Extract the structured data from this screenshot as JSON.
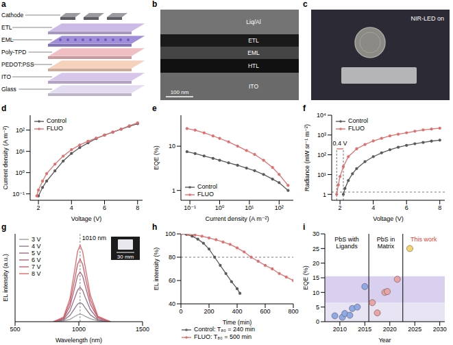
{
  "diagrams": {
    "a": {
      "panel": "a",
      "layers": [
        "Cathode",
        "ETL",
        "EML",
        "Poly-TPD",
        "PEDOT:PSS",
        "ITO",
        "Glass"
      ]
    },
    "b": {
      "panel": "b",
      "layers": [
        "Liq/Al",
        "ETL",
        "EML",
        "HTL",
        "ITO"
      ],
      "scale_bar": "100 nm"
    },
    "c": {
      "panel": "c",
      "caption": "NIR-LED on"
    }
  },
  "chart_data": [
    {
      "panel": "d",
      "type": "line",
      "log": "y",
      "x_label": "Voltage (V)",
      "y_label": "Current density (A m⁻²)",
      "xlim": [
        1.5,
        8.3
      ],
      "xticks": [
        2,
        4,
        6,
        8
      ],
      "ylim": [
        0.05,
        500
      ],
      "yticks": [
        {
          "value": 0.1,
          "label": "10⁻¹"
        },
        {
          "value": 1,
          "label": "10⁰"
        },
        {
          "value": 10,
          "label": "10¹"
        },
        {
          "value": 100,
          "label": "10²"
        }
      ],
      "legend": "upper left",
      "series": [
        {
          "name": "Control",
          "color": "#5a5a5a",
          "marker": "circle",
          "x": [
            2.0,
            2.25,
            2.5,
            3,
            3.5,
            4,
            4.5,
            5,
            5.5,
            6,
            6.5,
            7,
            7.5,
            8
          ],
          "values": [
            0.08,
            0.2,
            0.4,
            1.2,
            3.5,
            8,
            15,
            25,
            40,
            58,
            80,
            110,
            150,
            200
          ]
        },
        {
          "name": "FLUO",
          "color": "#e07070",
          "marker": "circle",
          "x": [
            1.9,
            2.0,
            2.25,
            2.5,
            3,
            3.5,
            4,
            4.5,
            5,
            5.5,
            6,
            6.5,
            7,
            7.5,
            8
          ],
          "values": [
            0.08,
            0.15,
            0.4,
            0.9,
            2.5,
            6,
            12,
            20,
            30,
            42,
            58,
            80,
            110,
            160,
            220
          ]
        }
      ]
    },
    {
      "panel": "e",
      "type": "line",
      "log": true,
      "x_label": "Current density (A m⁻²)",
      "y_label": "EQE (%)",
      "xlim": [
        0.05,
        300
      ],
      "xticks": [
        {
          "value": 0.1,
          "label": "10⁻¹"
        },
        {
          "value": 1,
          "label": "10⁰"
        },
        {
          "value": 10,
          "label": "10¹"
        },
        {
          "value": 100,
          "label": "10²"
        }
      ],
      "ylim": [
        0.6,
        50
      ],
      "yticks": [
        1,
        10
      ],
      "legend": "lower left",
      "series": [
        {
          "name": "Control",
          "color": "#5a5a5a",
          "marker": "circle",
          "x": [
            0.08,
            0.15,
            0.3,
            0.6,
            1,
            2,
            4,
            8,
            15,
            30,
            60,
            100,
            200
          ],
          "values": [
            7.5,
            6.8,
            6,
            5.3,
            4.8,
            4.2,
            3.7,
            3.2,
            2.8,
            2.3,
            1.8,
            1.5,
            1.0
          ]
        },
        {
          "name": "FLUO",
          "color": "#e07070",
          "marker": "circle",
          "x": [
            0.08,
            0.15,
            0.3,
            0.6,
            1,
            2,
            4,
            8,
            15,
            30,
            60,
            100,
            200
          ],
          "values": [
            25,
            23,
            20,
            17,
            15,
            12.5,
            10,
            8,
            6.5,
            4.8,
            3.3,
            2.3,
            1.3
          ]
        }
      ]
    },
    {
      "panel": "f",
      "type": "line",
      "log": "y",
      "x_label": "Voltage (V)",
      "y_label": "Radiance (mW sr⁻¹ m⁻²)",
      "xlim": [
        1.5,
        8.3
      ],
      "xticks": [
        2,
        4,
        6,
        8
      ],
      "ylim": [
        0.5,
        10000
      ],
      "yticks": [
        1,
        {
          "value": 10,
          "label": "10¹"
        },
        {
          "value": 100,
          "label": "10²"
        },
        {
          "value": 1000,
          "label": "10³"
        },
        {
          "value": 10000,
          "label": "10⁴"
        }
      ],
      "legend": "upper left",
      "reference_x": [
        1.8,
        2.2
      ],
      "reference_y": 1.3,
      "annotations": [
        {
          "text": "0.4 V",
          "y": 200
        }
      ],
      "series": [
        {
          "name": "Control",
          "color": "#5a5a5a",
          "marker": "circle",
          "x": [
            2.2,
            2.3,
            2.5,
            2.75,
            3,
            3.5,
            4,
            4.5,
            5,
            5.5,
            6,
            6.5,
            7,
            7.5,
            8
          ],
          "values": [
            1,
            2,
            5,
            11,
            20,
            45,
            80,
            125,
            180,
            240,
            300,
            360,
            420,
            490,
            550
          ]
        },
        {
          "name": "FLUO",
          "color": "#e07070",
          "marker": "circle",
          "x": [
            1.8,
            1.9,
            2.0,
            2.2,
            2.5,
            3,
            3.5,
            4,
            4.5,
            5,
            5.5,
            6,
            6.5,
            7,
            7.5,
            8
          ],
          "values": [
            1,
            3,
            8,
            25,
            80,
            200,
            330,
            500,
            680,
            900,
            1100,
            1300,
            1550,
            1800,
            2000,
            2200
          ]
        }
      ]
    },
    {
      "panel": "g",
      "type": "line",
      "x_label": "Wavelength (nm)",
      "y_label": "EL intensity (a.u.)",
      "tick_labels": "x",
      "xlim": [
        500,
        1500
      ],
      "xticks": [
        500,
        1000,
        1500
      ],
      "ylim": [
        0,
        1.15
      ],
      "legend": "upper left",
      "peak": {
        "x": 1010,
        "label": "1010 nm"
      },
      "inset": {
        "scale_bar": "30 mm"
      },
      "x": [
        800,
        880,
        930,
        970,
        990,
        1010,
        1030,
        1050,
        1090,
        1150,
        1250
      ],
      "series": [
        {
          "name": "3 V",
          "color": "#a0a0a0",
          "values": [
            0,
            0.01,
            0.03,
            0.07,
            0.09,
            0.1,
            0.09,
            0.07,
            0.04,
            0.01,
            0
          ]
        },
        {
          "name": "4 V",
          "color": "#8c7a8a",
          "values": [
            0,
            0.02,
            0.08,
            0.18,
            0.23,
            0.25,
            0.23,
            0.18,
            0.09,
            0.02,
            0
          ]
        },
        {
          "name": "5 V",
          "color": "#9a6a80",
          "values": [
            0,
            0.03,
            0.14,
            0.32,
            0.41,
            0.45,
            0.41,
            0.32,
            0.16,
            0.03,
            0
          ]
        },
        {
          "name": "6 V",
          "color": "#b06078",
          "values": [
            0,
            0.04,
            0.2,
            0.46,
            0.6,
            0.65,
            0.6,
            0.47,
            0.23,
            0.05,
            0
          ]
        },
        {
          "name": "7 V",
          "color": "#c86070",
          "values": [
            0,
            0.05,
            0.25,
            0.57,
            0.75,
            0.82,
            0.75,
            0.59,
            0.29,
            0.06,
            0
          ]
        },
        {
          "name": "8 V",
          "color": "#e06868",
          "values": [
            0,
            0.06,
            0.3,
            0.7,
            0.92,
            1,
            0.92,
            0.72,
            0.35,
            0.07,
            0
          ]
        }
      ]
    },
    {
      "panel": "h",
      "type": "line",
      "x_label": "Time (min)",
      "y_label": "EL intensity (%)",
      "xlim": [
        0,
        800
      ],
      "xticks": [
        0,
        200,
        400,
        600,
        800
      ],
      "ylim": [
        40,
        100
      ],
      "yticks": [
        40,
        60,
        80,
        100
      ],
      "reference_y": 80,
      "legend": "bottom",
      "series": [
        {
          "name": "Control: T₈₀ = 240 min",
          "color": "#5a5a5a",
          "marker": "circle",
          "x": [
            0,
            40,
            80,
            120,
            160,
            200,
            240,
            280,
            320,
            360,
            400,
            420
          ],
          "values": [
            100,
            99.5,
            98,
            95.5,
            92,
            87,
            80,
            73,
            66,
            59,
            53,
            49
          ]
        },
        {
          "name": "FLUO: T₈₀ = 500 min",
          "color": "#e07070",
          "marker": "circle",
          "x": [
            0,
            50,
            100,
            150,
            200,
            250,
            300,
            350,
            400,
            450,
            500,
            550,
            600,
            650,
            700,
            750,
            800
          ],
          "values": [
            100,
            99.6,
            99,
            98,
            96.5,
            95,
            93,
            91,
            88,
            84.5,
            80,
            76.5,
            73,
            70,
            66,
            63,
            60
          ]
        }
      ]
    },
    {
      "panel": "i",
      "type": "scatter",
      "x_label": "Year",
      "y_label": "EQE (%)",
      "xlim": [
        2007,
        2031
      ],
      "xticks": [
        2010,
        2015,
        2020,
        2025,
        2030
      ],
      "ylim": [
        0,
        30
      ],
      "yticks": [
        0,
        5,
        10,
        15,
        20,
        25,
        30
      ],
      "bands": [
        {
          "from": 0,
          "to": 6.5
        },
        {
          "from": 6.5,
          "to": 15.5
        }
      ],
      "regions": [
        {
          "label": "PbS with Ligands",
          "from": 2007,
          "to": 2015.8
        },
        {
          "label": "PbS in Matrix",
          "from": 2015.8,
          "to": 2022.6
        },
        {
          "label": "This work",
          "from": 2022.6,
          "to": 2031,
          "color": "#e0403a"
        }
      ],
      "series": [
        {
          "color": "#8fa8e6",
          "x": [
            2009,
            2010.5,
            2011,
            2012,
            2012.5,
            2013.5,
            2015
          ],
          "values": [
            2,
            1.5,
            2.8,
            2.2,
            4.5,
            5,
            12
          ]
        },
        {
          "color": "#eba3a3",
          "x": [
            2016.5,
            2017.5,
            2019,
            2019.5,
            2021.5
          ],
          "values": [
            6.5,
            3,
            10,
            10.3,
            14.5
          ]
        },
        {
          "color": "#f5d76e",
          "x": [
            2024
          ],
          "values": [
            25
          ]
        }
      ]
    }
  ]
}
